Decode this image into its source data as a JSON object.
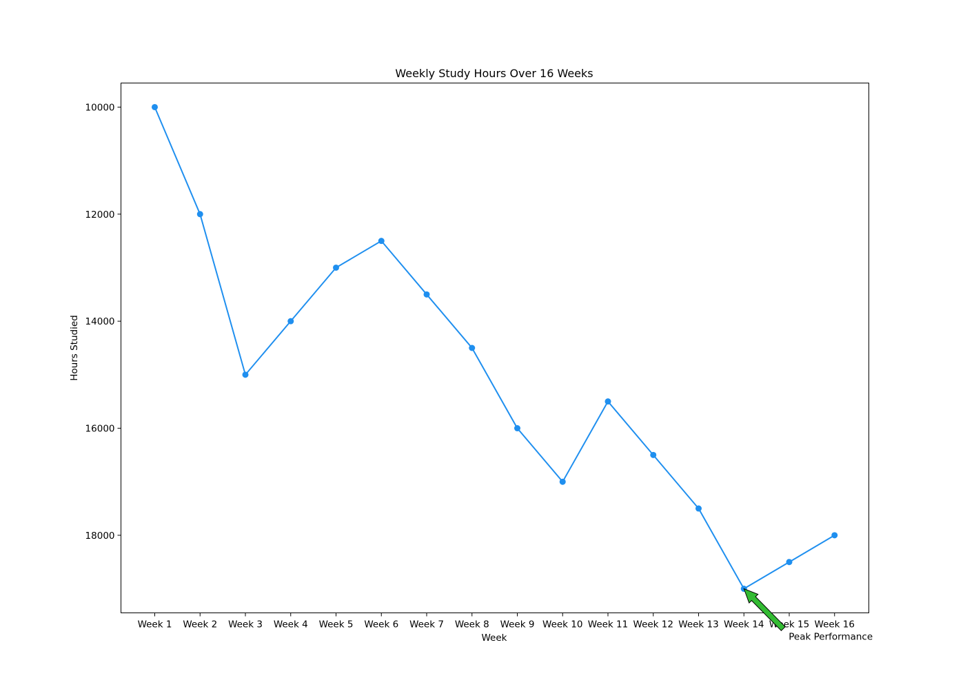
{
  "chart_data": {
    "type": "line",
    "title": "Weekly Study Hours Over 16 Weeks",
    "xlabel": "Week",
    "ylabel": "Hours Studied",
    "categories": [
      "Week 1",
      "Week 2",
      "Week 3",
      "Week 4",
      "Week 5",
      "Week 6",
      "Week 7",
      "Week 8",
      "Week 9",
      "Week 10",
      "Week 11",
      "Week 12",
      "Week 13",
      "Week 14",
      "Week 15",
      "Week 16"
    ],
    "series": [
      {
        "values": [
          10000,
          12000,
          15000,
          14000,
          13000,
          12500,
          13500,
          14500,
          16000,
          17000,
          15500,
          16500,
          17500,
          19000,
          18500,
          18000
        ],
        "color": "#1f8fef"
      }
    ],
    "ylim": [
      9550,
      19450
    ],
    "y_inverted": true,
    "yticks": [
      10000,
      12000,
      14000,
      16000,
      18000
    ],
    "grid": false,
    "annotation": {
      "text": "Peak Performance",
      "point_category": "Week 14",
      "point_value": 19000,
      "arrow_color": "#33bb33"
    }
  }
}
